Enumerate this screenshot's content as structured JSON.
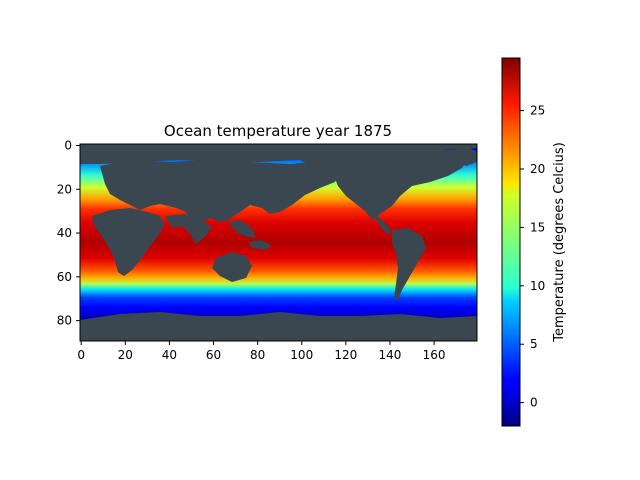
{
  "chart_data": {
    "type": "heatmap",
    "title": "Ocean temperature year 1875",
    "xlabel": "",
    "ylabel": "",
    "xlim": [
      0,
      180
    ],
    "ylim": [
      90,
      0
    ],
    "x_ticks": [
      0,
      20,
      40,
      60,
      80,
      100,
      120,
      140,
      160
    ],
    "y_ticks": [
      0,
      20,
      40,
      60,
      80
    ],
    "colormap": "jet",
    "land_color": "#3a4750",
    "colorbar": {
      "label": "Temperature (degrees Celcius)",
      "range": [
        -2,
        29.5
      ],
      "ticks": [
        0,
        5,
        10,
        15,
        20,
        25
      ]
    },
    "grid": false,
    "description_of_field": "Ocean surface temperature grid on 180 x 90 cells; warmest (~28-29) near rows 40-50, coldest (~-2) near rows 5-10 and 75-90; continents drawn as land mask."
  }
}
